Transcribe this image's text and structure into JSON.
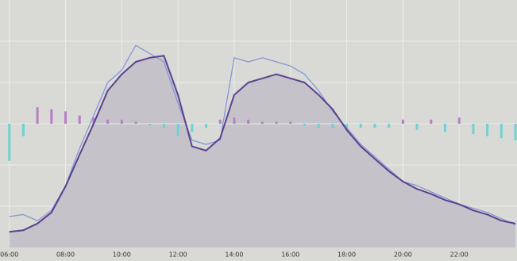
{
  "chart_data": {
    "type": "line",
    "x": [
      6,
      6.5,
      7,
      7.5,
      8,
      8.5,
      9,
      9.5,
      10,
      10.5,
      11,
      11.5,
      12,
      12.5,
      13,
      13.5,
      14,
      14.5,
      15,
      15.5,
      16,
      16.5,
      17,
      17.5,
      18,
      18.5,
      19,
      19.5,
      20,
      20.5,
      21,
      21.5,
      22,
      22.5,
      23,
      23.5,
      24
    ],
    "series": [
      {
        "color": "#5b4290",
        "area_color": "#c5c3c9",
        "values": [
          0.38,
          0.42,
          0.58,
          0.85,
          1.48,
          2.25,
          3.0,
          3.8,
          4.2,
          4.5,
          4.6,
          4.65,
          3.7,
          2.45,
          2.35,
          2.65,
          3.7,
          4.0,
          4.1,
          4.2,
          4.1,
          4.0,
          3.7,
          3.35,
          2.85,
          2.45,
          2.15,
          1.85,
          1.6,
          1.42,
          1.3,
          1.15,
          1.05,
          0.9,
          0.8,
          0.65,
          0.58
        ]
      },
      {
        "color": "#7f93d8",
        "values": [
          0.75,
          0.8,
          0.65,
          0.9,
          1.5,
          2.4,
          3.2,
          4.0,
          4.3,
          4.9,
          4.7,
          4.5,
          3.5,
          2.6,
          2.5,
          2.6,
          4.6,
          4.5,
          4.6,
          4.5,
          4.4,
          4.2,
          3.8,
          3.3,
          2.9,
          2.5,
          2.2,
          1.9,
          1.6,
          1.5,
          1.35,
          1.2,
          1.05,
          0.95,
          0.85,
          0.7,
          0.55
        ]
      }
    ],
    "difference_bars": {
      "base": 3,
      "positive_color": "#b57fc8",
      "negative_color": "#6ed2d5",
      "values": [
        -0.9,
        -0.3,
        0.4,
        0.35,
        0.3,
        0.2,
        0.15,
        0.1,
        0.1,
        0.05,
        -0.05,
        -0.1,
        -0.3,
        -0.2,
        -0.1,
        0.1,
        0.15,
        0.1,
        0.05,
        0.05,
        0.05,
        -0.05,
        -0.1,
        -0.1,
        -0.15,
        -0.1,
        -0.1,
        -0.1,
        0.1,
        -0.15,
        0.1,
        -0.2,
        0.15,
        -0.25,
        -0.3,
        -0.35,
        -0.4
      ]
    },
    "xlim": [
      5.98,
      24
    ],
    "ylim": [
      0,
      6
    ],
    "xticks": [
      {
        "value": 6,
        "label": "06:00"
      },
      {
        "value": 8,
        "label": "08:00"
      },
      {
        "value": 10,
        "label": "10:00"
      },
      {
        "value": 12,
        "label": "12:00"
      },
      {
        "value": 14,
        "label": "14:00"
      },
      {
        "value": 16,
        "label": "16:00"
      },
      {
        "value": 18,
        "label": "18:00"
      },
      {
        "value": 20,
        "label": "20:00"
      },
      {
        "value": 22,
        "label": "22:00"
      }
    ],
    "yticks": [
      1,
      2,
      3,
      4,
      5
    ],
    "grid": true
  }
}
